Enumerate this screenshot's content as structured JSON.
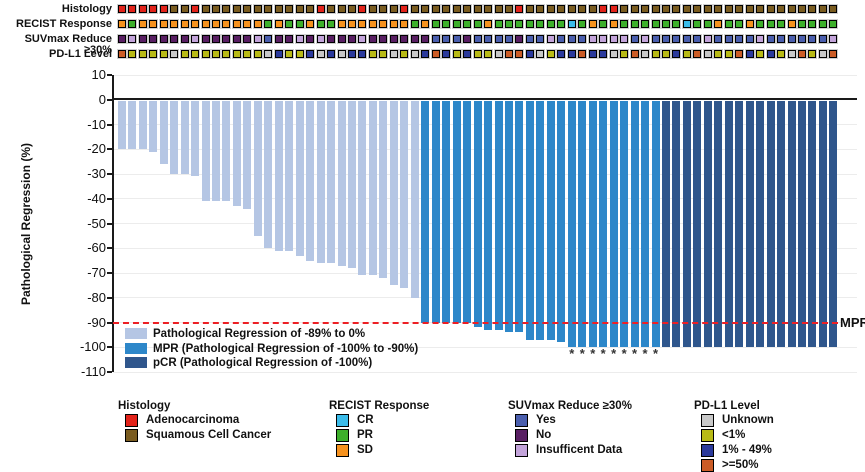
{
  "annotation_tracks": {
    "rows": [
      {
        "label": "Histology",
        "palette": {
          "A": "#e2231a",
          "S": "#7a5c20"
        },
        "values": [
          "A",
          "A",
          "A",
          "A",
          "A",
          "S",
          "S",
          "A",
          "S",
          "S",
          "S",
          "S",
          "S",
          "S",
          "S",
          "S",
          "S",
          "S",
          "S",
          "A",
          "S",
          "S",
          "S",
          "A",
          "S",
          "S",
          "S",
          "A",
          "S",
          "S",
          "S",
          "S",
          "S",
          "S",
          "S",
          "S",
          "S",
          "S",
          "A",
          "S",
          "S",
          "S",
          "S",
          "S",
          "S",
          "S",
          "A",
          "A",
          "S",
          "S",
          "S",
          "S",
          "S",
          "S",
          "S",
          "S",
          "S",
          "S",
          "S",
          "S",
          "S",
          "S",
          "S",
          "S",
          "S",
          "S",
          "S",
          "S",
          "S"
        ]
      },
      {
        "label": "RECIST Response",
        "palette": {
          "CR": "#3bbcea",
          "PR": "#3daf2b",
          "SD": "#f6921e"
        },
        "values": [
          "SD",
          "PR",
          "SD",
          "SD",
          "SD",
          "SD",
          "SD",
          "SD",
          "SD",
          "SD",
          "SD",
          "SD",
          "SD",
          "SD",
          "PR",
          "SD",
          "PR",
          "PR",
          "SD",
          "PR",
          "PR",
          "SD",
          "SD",
          "SD",
          "SD",
          "SD",
          "SD",
          "SD",
          "PR",
          "SD",
          "PR",
          "PR",
          "PR",
          "PR",
          "PR",
          "SD",
          "PR",
          "PR",
          "PR",
          "PR",
          "PR",
          "PR",
          "PR",
          "CR",
          "PR",
          "SD",
          "PR",
          "SD",
          "PR",
          "PR",
          "PR",
          "PR",
          "PR",
          "PR",
          "CR",
          "PR",
          "PR",
          "SD",
          "PR",
          "PR",
          "SD",
          "PR",
          "PR",
          "PR",
          "SD",
          "PR",
          "PR",
          "PR",
          "PR"
        ]
      },
      {
        "label": "SUVmax Reduce ≥30%",
        "palette": {
          "Y": "#4b5fae",
          "N": "#591f63",
          "I": "#c3a4da"
        },
        "values": [
          "N",
          "I",
          "N",
          "N",
          "N",
          "N",
          "N",
          "I",
          "N",
          "N",
          "N",
          "N",
          "N",
          "I",
          "Y",
          "N",
          "N",
          "I",
          "N",
          "I",
          "N",
          "N",
          "N",
          "I",
          "N",
          "N",
          "N",
          "N",
          "N",
          "N",
          "Y",
          "Y",
          "Y",
          "N",
          "Y",
          "Y",
          "Y",
          "Y",
          "N",
          "Y",
          "Y",
          "I",
          "Y",
          "Y",
          "Y",
          "I",
          "I",
          "I",
          "I",
          "Y",
          "I",
          "Y",
          "Y",
          "Y",
          "Y",
          "Y",
          "I",
          "Y",
          "Y",
          "Y",
          "Y",
          "I",
          "Y",
          "Y",
          "Y",
          "Y",
          "Y",
          "Y",
          "I"
        ]
      },
      {
        "label": "PD-L1 Level",
        "palette": {
          "U": "#c8c8c8",
          "L": "#b8ba16",
          "M": "#2b3a9c",
          "H": "#cb5c26"
        },
        "values": [
          "H",
          "L",
          "L",
          "L",
          "L",
          "U",
          "L",
          "L",
          "L",
          "L",
          "L",
          "L",
          "L",
          "L",
          "U",
          "M",
          "L",
          "L",
          "M",
          "U",
          "M",
          "U",
          "M",
          "M",
          "L",
          "L",
          "U",
          "L",
          "U",
          "M",
          "H",
          "M",
          "L",
          "M",
          "L",
          "L",
          "U",
          "H",
          "H",
          "M",
          "U",
          "L",
          "M",
          "M",
          "H",
          "M",
          "M",
          "U",
          "L",
          "H",
          "U",
          "L",
          "L",
          "M",
          "L",
          "H",
          "U",
          "L",
          "L",
          "H",
          "M",
          "L",
          "M",
          "L",
          "U",
          "H",
          "L",
          "U",
          "H"
        ]
      }
    ]
  },
  "chart_data": {
    "type": "bar",
    "title": "",
    "xlabel": "",
    "ylabel": "Pathological Regression (%)",
    "ylim": [
      -110,
      10
    ],
    "yticks": [
      10,
      0,
      -10,
      -20,
      -30,
      -40,
      -50,
      -60,
      -70,
      -80,
      -90,
      -100,
      -110
    ],
    "grid": "horizontal",
    "values": [
      -20,
      -20,
      -20,
      -21,
      -26,
      -30,
      -30,
      -31,
      -41,
      -41,
      -41,
      -43,
      -44,
      -55,
      -60,
      -61,
      -61,
      -63,
      -65,
      -66,
      -66,
      -67,
      -68,
      -71,
      -71,
      -72,
      -75,
      -76,
      -80,
      -90,
      -90,
      -90,
      -90,
      -90,
      -92,
      -93,
      -93,
      -94,
      -94,
      -97,
      -97,
      -97,
      -98,
      -100,
      -100,
      -100,
      -100,
      -100,
      -100,
      -100,
      -100,
      -100,
      -100,
      -100,
      -100,
      -100,
      -100,
      -100,
      -100,
      -100,
      -100,
      -100,
      -100,
      -100,
      -100,
      -100,
      -100,
      -100,
      -100
    ],
    "bar_classes": [
      "reg",
      "reg",
      "reg",
      "reg",
      "reg",
      "reg",
      "reg",
      "reg",
      "reg",
      "reg",
      "reg",
      "reg",
      "reg",
      "reg",
      "reg",
      "reg",
      "reg",
      "reg",
      "reg",
      "reg",
      "reg",
      "reg",
      "reg",
      "reg",
      "reg",
      "reg",
      "reg",
      "reg",
      "reg",
      "mpr",
      "mpr",
      "mpr",
      "mpr",
      "mpr",
      "mpr",
      "mpr",
      "mpr",
      "mpr",
      "mpr",
      "mpr",
      "mpr",
      "mpr",
      "mpr",
      "mpr",
      "mpr",
      "mpr",
      "mpr",
      "mpr",
      "mpr",
      "mpr",
      "mpr",
      "mpr",
      "pcr",
      "pcr",
      "pcr",
      "pcr",
      "pcr",
      "pcr",
      "pcr",
      "pcr",
      "pcr",
      "pcr",
      "pcr",
      "pcr",
      "pcr",
      "pcr",
      "pcr",
      "pcr",
      "pcr"
    ],
    "bar_colors": {
      "reg": "#b5c6e4",
      "mpr": "#2d87c9",
      "pcr": "#2f568c"
    },
    "reference_line": {
      "value": -90,
      "label": "MPR",
      "color": "#ed1f24",
      "style": "dashed"
    },
    "asterisk_symbol": "*",
    "asterisk_bar_indices": [
      44,
      45,
      46,
      47,
      48,
      49,
      50,
      51,
      52
    ],
    "legend": [
      {
        "key": "reg",
        "label": "Pathological Regression of -89% to 0%",
        "color": "#b5c6e4"
      },
      {
        "key": "mpr",
        "label": "MPR (Pathological Regression of -100% to -90%)",
        "color": "#2d87c9"
      },
      {
        "key": "pcr",
        "label": "pCR (Pathological Regression of -100%)",
        "color": "#2f568c"
      }
    ],
    "legend_position": "inside-bottom-left"
  },
  "bottom_legends": [
    {
      "title": "Histology",
      "items": [
        {
          "label": "Adenocarcinoma",
          "color": "#e2231a"
        },
        {
          "label": "Squamous Cell Cancer",
          "color": "#7a5c20"
        }
      ]
    },
    {
      "title": "RECIST Response",
      "items": [
        {
          "label": "CR",
          "color": "#3bbcea"
        },
        {
          "label": "PR",
          "color": "#3daf2b"
        },
        {
          "label": "SD",
          "color": "#f6921e"
        }
      ]
    },
    {
      "title": "SUVmax Reduce ≥30%",
      "items": [
        {
          "label": "Yes",
          "color": "#4b5fae"
        },
        {
          "label": "No",
          "color": "#591f63"
        },
        {
          "label": "Insufficent Data",
          "color": "#c3a4da"
        }
      ]
    },
    {
      "title": "PD-L1 Level",
      "items": [
        {
          "label": "Unknown",
          "color": "#c8c8c8"
        },
        {
          "label": "<1%",
          "color": "#b8ba16"
        },
        {
          "label": "1% - 49%",
          "color": "#2b3a9c"
        },
        {
          "label": ">=50%",
          "color": "#cb5c26"
        }
      ]
    }
  ]
}
